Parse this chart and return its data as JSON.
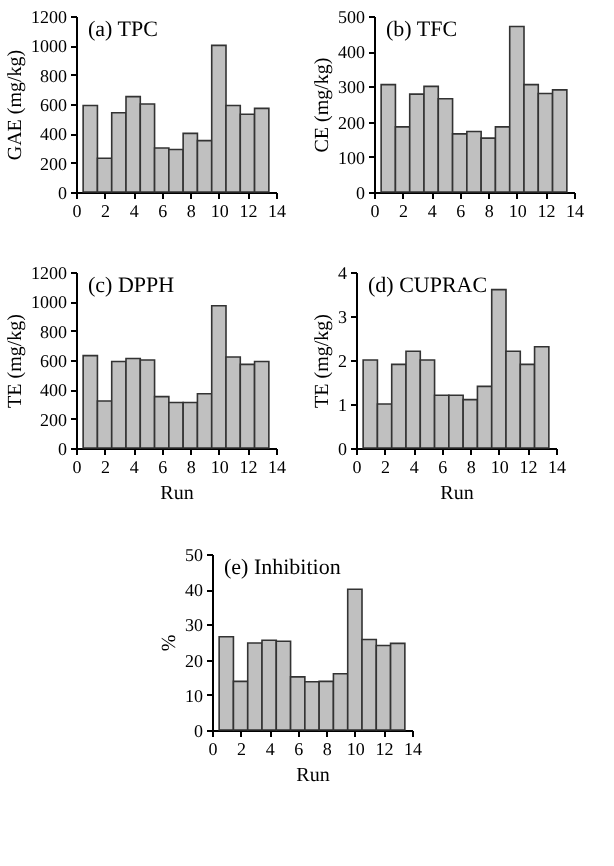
{
  "chart_data": [
    {
      "type": "bar",
      "title": "(a) TPC",
      "ylabel": "GAE (mg/kg)",
      "x": [
        1,
        2,
        3,
        4,
        5,
        6,
        7,
        8,
        9,
        10,
        11,
        12,
        13
      ],
      "values": [
        590,
        230,
        540,
        650,
        600,
        300,
        290,
        400,
        350,
        1000,
        590,
        530,
        570
      ],
      "color": "#c0c0c0",
      "xlim": [
        0,
        14
      ],
      "xticks": [
        0,
        2,
        4,
        6,
        8,
        10,
        12,
        14
      ],
      "ylim": [
        0,
        1200
      ],
      "yticks": [
        0,
        200,
        400,
        600,
        800,
        1000,
        1200
      ]
    },
    {
      "type": "bar",
      "title": "(b) TFC",
      "ylabel": "CE (mg/kg)",
      "x": [
        1,
        2,
        3,
        4,
        5,
        6,
        7,
        8,
        9,
        10,
        11,
        12,
        13
      ],
      "values": [
        305,
        185,
        278,
        300,
        265,
        165,
        172,
        153,
        185,
        470,
        305,
        280,
        290
      ],
      "color": "#c0c0c0",
      "xlim": [
        0,
        14
      ],
      "xticks": [
        0,
        2,
        4,
        6,
        8,
        10,
        12,
        14
      ],
      "ylim": [
        0,
        500
      ],
      "yticks": [
        0,
        100,
        200,
        300,
        400,
        500
      ]
    },
    {
      "type": "bar",
      "title": "(c) DPPH",
      "xlabel": "Run",
      "ylabel": "TE (mg/kg)",
      "x": [
        1,
        2,
        3,
        4,
        5,
        6,
        7,
        8,
        9,
        10,
        11,
        12,
        13
      ],
      "values": [
        630,
        320,
        590,
        610,
        600,
        350,
        310,
        310,
        370,
        970,
        620,
        570,
        590
      ],
      "color": "#c0c0c0",
      "xlim": [
        0,
        14
      ],
      "xticks": [
        0,
        2,
        4,
        6,
        8,
        10,
        12,
        14
      ],
      "ylim": [
        0,
        1200
      ],
      "yticks": [
        0,
        200,
        400,
        600,
        800,
        1000,
        1200
      ]
    },
    {
      "type": "bar",
      "title": "(d) CUPRAC",
      "xlabel": "Run",
      "ylabel": "TE (mg/kg)",
      "x": [
        1,
        2,
        3,
        4,
        5,
        6,
        7,
        8,
        9,
        10,
        11,
        12,
        13
      ],
      "values": [
        2.0,
        1.0,
        1.9,
        2.2,
        2.0,
        1.2,
        1.2,
        1.1,
        1.4,
        3.6,
        2.2,
        1.9,
        2.3
      ],
      "color": "#c0c0c0",
      "xlim": [
        0,
        14
      ],
      "xticks": [
        0,
        2,
        4,
        6,
        8,
        10,
        12,
        14
      ],
      "ylim": [
        0,
        4
      ],
      "yticks": [
        0,
        1,
        2,
        3,
        4
      ]
    },
    {
      "type": "bar",
      "title": "(e) Inhibition",
      "xlabel": "Run",
      "ylabel": "%",
      "x": [
        1,
        2,
        3,
        4,
        5,
        6,
        7,
        8,
        9,
        10,
        11,
        12,
        13
      ],
      "values": [
        26.5,
        13.8,
        24.7,
        25.5,
        25.2,
        15.1,
        13.7,
        13.8,
        16.0,
        40,
        25.7,
        24,
        24.6
      ],
      "color": "#c0c0c0",
      "xlim": [
        0,
        14
      ],
      "xticks": [
        0,
        2,
        4,
        6,
        8,
        10,
        12,
        14
      ],
      "ylim": [
        0,
        50
      ],
      "yticks": [
        0,
        10,
        20,
        30,
        40,
        50
      ]
    }
  ]
}
